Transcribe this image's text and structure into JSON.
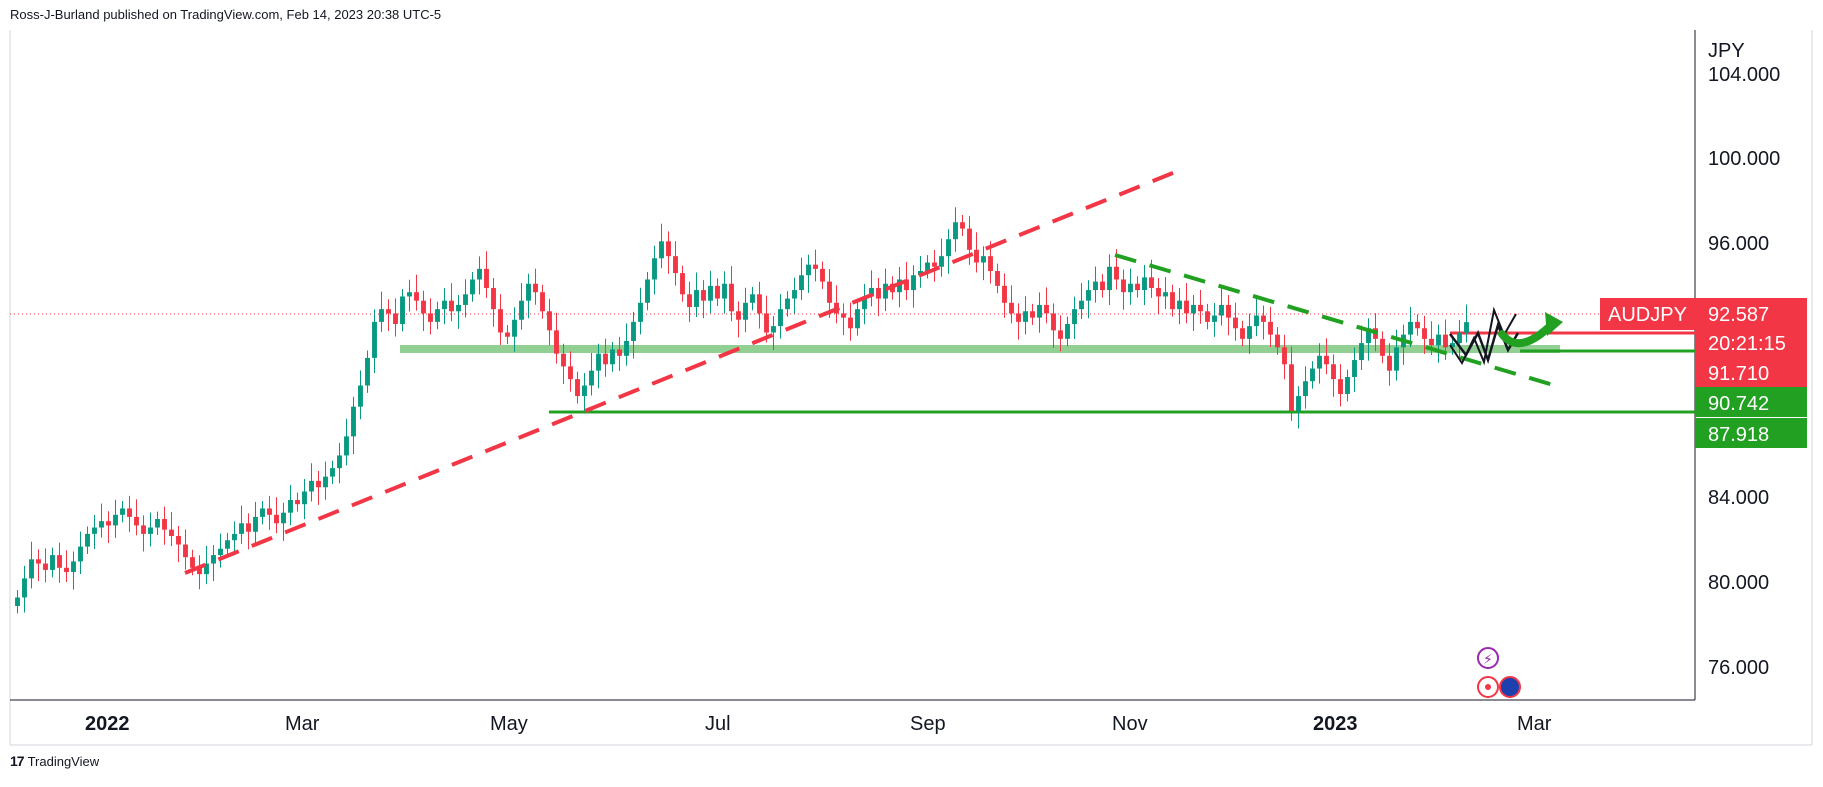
{
  "header": {
    "publisher_line": "Ross-J-Burland published on TradingView.com, Feb 14, 2023 20:38 UTC-5"
  },
  "footer": {
    "brand": "TradingView",
    "logo_glyph": "17"
  },
  "colors": {
    "up": "#089981",
    "down": "#f23645",
    "red_line": "#f23645",
    "green_line": "#22a022",
    "support_zone": "#7fc77f",
    "axis_text": "#131722",
    "border": "#d1d4dc"
  },
  "chart_data": {
    "type": "candlestick",
    "symbol": "AUDJPY",
    "currency": "JPY",
    "y_ticks": [
      "104.000",
      "100.000",
      "96.000",
      "84.000",
      "80.000",
      "76.000"
    ],
    "x_ticks": [
      {
        "label": "2022",
        "bold": true
      },
      {
        "label": "Mar",
        "bold": false
      },
      {
        "label": "May",
        "bold": false
      },
      {
        "label": "Jul",
        "bold": false
      },
      {
        "label": "Sep",
        "bold": false
      },
      {
        "label": "Nov",
        "bold": false
      },
      {
        "label": "2023",
        "bold": true
      },
      {
        "label": "Mar",
        "bold": false
      }
    ],
    "price_tags": [
      {
        "name": "symbol",
        "text": "AUDJPY",
        "value": "92.587",
        "color": "#f23645"
      },
      {
        "name": "countdown",
        "text": "20:21:15",
        "value": null,
        "color": "#f23645"
      },
      {
        "name": "level-1",
        "text": "91.710",
        "value": 91.71,
        "color": "#f23645"
      },
      {
        "name": "level-2",
        "text": "90.742",
        "value": 90.742,
        "color": "#22a022"
      },
      {
        "name": "level-3",
        "text": "87.918",
        "value": 87.918,
        "color": "#22a022"
      }
    ],
    "approx_closes": [
      79.6,
      80.5,
      81.4,
      81.2,
      80.9,
      81.6,
      81.0,
      80.8,
      81.3,
      82.0,
      82.6,
      82.9,
      83.2,
      83.0,
      83.5,
      83.8,
      83.4,
      83.0,
      82.6,
      82.9,
      83.3,
      82.8,
      82.5,
      82.1,
      81.5,
      81.0,
      80.7,
      81.2,
      81.6,
      81.9,
      82.3,
      82.6,
      83.1,
      82.7,
      83.4,
      83.8,
      83.5,
      83.1,
      83.6,
      84.2,
      84.0,
      84.6,
      85.1,
      84.8,
      85.3,
      85.7,
      86.3,
      87.2,
      88.6,
      89.6,
      90.9,
      92.6,
      93.2,
      93.0,
      92.5,
      93.8,
      94.0,
      93.6,
      93.0,
      92.6,
      93.2,
      93.6,
      93.1,
      93.4,
      93.9,
      94.6,
      95.1,
      94.2,
      93.2,
      92.1,
      91.9,
      92.7,
      93.6,
      94.4,
      94.0,
      93.1,
      92.2,
      91.1,
      90.5,
      89.9,
      89.1,
      89.6,
      90.3,
      91.1,
      90.6,
      91.3,
      91.0,
      91.7,
      92.6,
      93.5,
      94.6,
      95.6,
      96.4,
      95.7,
      94.9,
      93.9,
      93.3,
      94.1,
      93.6,
      94.3,
      93.7,
      94.4,
      93.1,
      92.7,
      93.5,
      93.9,
      93.0,
      92.1,
      92.4,
      93.2,
      93.7,
      94.1,
      94.8,
      95.3,
      95.1,
      94.5,
      93.5,
      93.0,
      92.8,
      92.3,
      93.2,
      93.8,
      94.2,
      93.7,
      94.4,
      94.0,
      94.6,
      94.1,
      94.8,
      95.0,
      95.4,
      95.2,
      95.7,
      96.5,
      97.3,
      97.0,
      96.0,
      95.4,
      95.7,
      95.0,
      94.3,
      93.5,
      93.0,
      92.6,
      93.1,
      92.8,
      93.4,
      93.0,
      92.2,
      91.8,
      92.5,
      93.2,
      93.6,
      94.1,
      94.5,
      94.1,
      95.2,
      94.6,
      94.0,
      94.4,
      94.1,
      94.7,
      94.2,
      93.8,
      94.0,
      93.2,
      93.6,
      93.0,
      93.4,
      93.1,
      92.6,
      92.9,
      93.4,
      92.8,
      92.3,
      91.8,
      92.4,
      92.9,
      92.6,
      92.0,
      91.4,
      90.6,
      88.4,
      89.1,
      89.8,
      90.4,
      91.0,
      90.6,
      89.9,
      89.2,
      90.0,
      90.8,
      91.6,
      92.3,
      91.8,
      91.0,
      90.3,
      91.4,
      92.0,
      92.6,
      92.3,
      91.8,
      91.5,
      92.0,
      91.4,
      91.6,
      92.1,
      92.587
    ]
  }
}
